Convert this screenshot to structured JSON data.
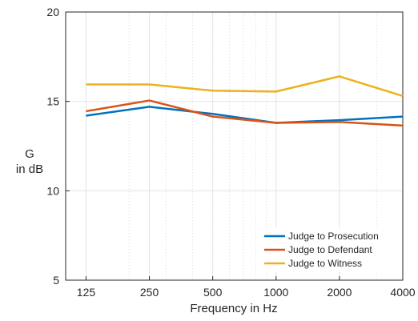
{
  "chart_data": {
    "type": "line",
    "xlabel": "Frequency in Hz",
    "ylabel_line1": "G",
    "ylabel_line2": "in dB",
    "x": [
      125,
      250,
      500,
      1000,
      2000,
      4000
    ],
    "x_tick_labels": [
      "125",
      "250",
      "500",
      "1000",
      "2000",
      "4000"
    ],
    "x_scale": "log",
    "xlim": [
      100,
      4000
    ],
    "ylim": [
      5,
      20
    ],
    "y_ticks": [
      5,
      10,
      15,
      20
    ],
    "grid": true,
    "legend_position": "bottom-right",
    "series": [
      {
        "name": "Judge to Prosecution",
        "color": "#0072BD",
        "values": [
          14.2,
          14.7,
          14.3,
          13.8,
          13.95,
          14.15
        ]
      },
      {
        "name": "Judge to Defendant",
        "color": "#D95319",
        "values": [
          14.45,
          15.05,
          14.15,
          13.8,
          13.85,
          13.65
        ]
      },
      {
        "name": "Judge to Witness",
        "color": "#EDB120",
        "values": [
          15.95,
          15.95,
          15.6,
          15.55,
          16.4,
          15.3
        ]
      }
    ]
  }
}
